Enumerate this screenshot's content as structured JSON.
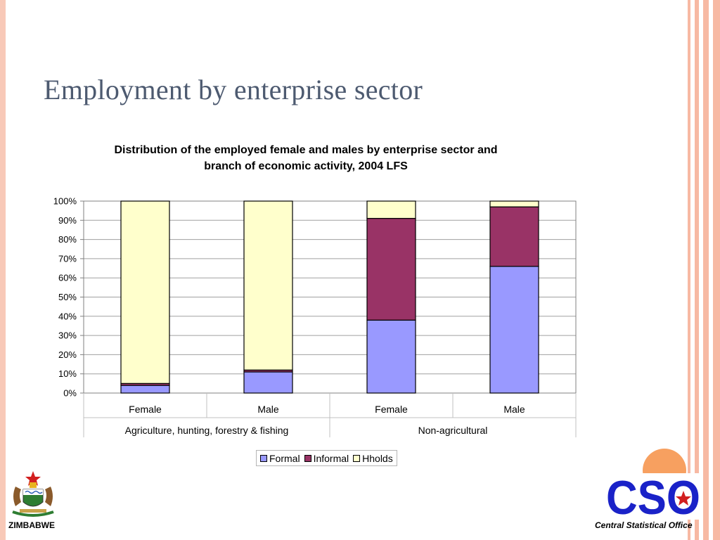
{
  "slide": {
    "title": "Employment by enterprise sector",
    "footer_left": "ZIMBABWE",
    "footer_right": "Central Statistical Office",
    "logo_text": "CSO"
  },
  "colors": {
    "formal": "#9999ff",
    "informal": "#993366",
    "hholds": "#ffffcc",
    "stripe": "#f7b9a3",
    "title": "#4d5a70",
    "cso_blue": "#1a22c8",
    "sun": "#f7a060"
  },
  "chart_data": {
    "type": "bar",
    "stacked": true,
    "percent": true,
    "title_lines": [
      "Distribution of the employed female and males by enterprise sector and",
      "branch of economic activity, 2004 LFS"
    ],
    "categories": [
      "Female",
      "Male",
      "Female",
      "Male"
    ],
    "groups": [
      {
        "label": "Agriculture, hunting, forestry & fishing",
        "categories": [
          0,
          1
        ]
      },
      {
        "label": "Non-agricultural",
        "categories": [
          2,
          3
        ]
      }
    ],
    "series": [
      {
        "name": "Formal",
        "color": "#9999ff",
        "values": [
          4,
          11,
          38,
          66
        ]
      },
      {
        "name": "Informal",
        "color": "#993366",
        "values": [
          1,
          1,
          53,
          31
        ]
      },
      {
        "name": "Hholds",
        "color": "#ffffcc",
        "values": [
          95,
          88,
          9,
          3
        ]
      }
    ],
    "yticks": [
      "0%",
      "10%",
      "20%",
      "30%",
      "40%",
      "50%",
      "60%",
      "70%",
      "80%",
      "90%",
      "100%"
    ],
    "ylim": [
      0,
      100
    ],
    "grid": true,
    "legend": "bottom"
  }
}
